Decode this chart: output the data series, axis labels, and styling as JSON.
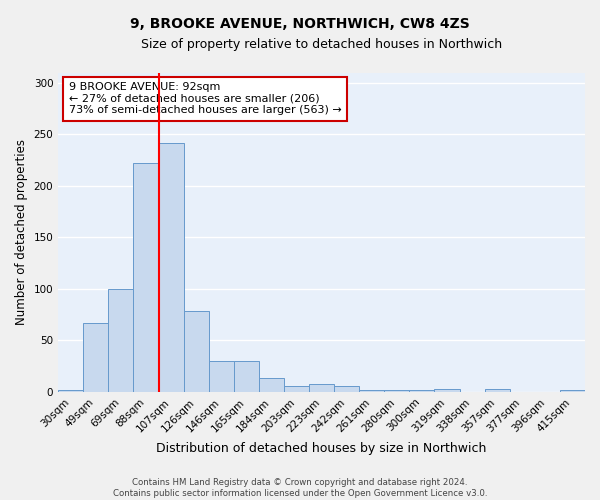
{
  "title": "9, BROOKE AVENUE, NORTHWICH, CW8 4ZS",
  "subtitle": "Size of property relative to detached houses in Northwich",
  "xlabel": "Distribution of detached houses by size in Northwich",
  "ylabel": "Number of detached properties",
  "categories": [
    "30sqm",
    "49sqm",
    "69sqm",
    "88sqm",
    "107sqm",
    "126sqm",
    "146sqm",
    "165sqm",
    "184sqm",
    "203sqm",
    "223sqm",
    "242sqm",
    "261sqm",
    "280sqm",
    "300sqm",
    "319sqm",
    "338sqm",
    "357sqm",
    "377sqm",
    "396sqm",
    "415sqm"
  ],
  "values": [
    2,
    67,
    100,
    222,
    242,
    79,
    30,
    30,
    14,
    6,
    8,
    6,
    2,
    2,
    2,
    3,
    0,
    3,
    0,
    0,
    2
  ],
  "bar_color": "#c8d9ee",
  "bar_edge_color": "#6699cc",
  "red_line_index": 3.5,
  "annotation_line1": "9 BROOKE AVENUE: 92sqm",
  "annotation_line2": "← 27% of detached houses are smaller (206)",
  "annotation_line3": "73% of semi-detached houses are larger (563) →",
  "annotation_box_color": "#ffffff",
  "annotation_box_edge": "#cc0000",
  "footer_line1": "Contains HM Land Registry data © Crown copyright and database right 2024.",
  "footer_line2": "Contains public sector information licensed under the Open Government Licence v3.0.",
  "ylim": [
    0,
    310
  ],
  "background_color": "#e8f0fa",
  "grid_color": "#ffffff",
  "fig_bg": "#f0f0f0",
  "title_fontsize": 10,
  "subtitle_fontsize": 9,
  "tick_fontsize": 7.5,
  "ylabel_fontsize": 8.5,
  "xlabel_fontsize": 9
}
